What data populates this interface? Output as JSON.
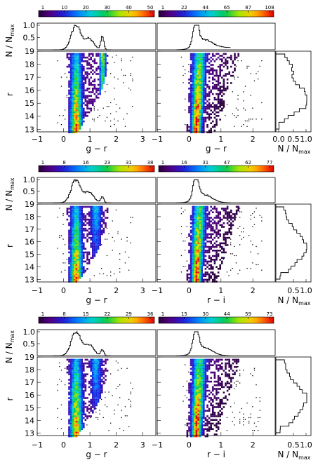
{
  "chart_data": [
    {
      "type": "heatmap",
      "row": 1,
      "colorbars": [
        [
          "1",
          "10",
          "20",
          "30",
          "40",
          "50"
        ],
        [
          "1",
          "22",
          "44",
          "65",
          "87",
          "108"
        ]
      ],
      "panels": [
        {
          "xlabel": "g − r",
          "xticks": [
            "−1",
            "0",
            "1",
            "2",
            "3"
          ],
          "xlim": [
            -1,
            3.5
          ],
          "ylabel": "r",
          "yticks": [
            "13",
            "14",
            "15",
            "16",
            "17",
            "18",
            "19"
          ],
          "ylim": [
            12.8,
            19
          ]
        },
        {
          "xlabel": "g − r",
          "xticks": [
            "−1",
            "0",
            "1",
            "2"
          ],
          "xlim": [
            -1,
            2.7
          ],
          "ylabel": "",
          "yticks": [],
          "ylim": [
            12.8,
            19
          ]
        }
      ],
      "top_histogram": {
        "ylabel": "N / Nmax",
        "yticks": [
          "0.5",
          "1.0"
        ]
      },
      "side_histogram": {
        "xlabel": "N / Nmax",
        "xticks": [
          "0.0",
          "0.5",
          "1.0"
        ]
      }
    },
    {
      "type": "heatmap",
      "row": 2,
      "colorbars": [
        [
          "1",
          "8",
          "16",
          "23",
          "31",
          "38"
        ],
        [
          "1",
          "16",
          "31",
          "47",
          "62",
          "77"
        ]
      ],
      "panels": [
        {
          "xlabel": "g − r",
          "xticks": [
            "−1",
            "0",
            "1",
            "2",
            "3"
          ],
          "xlim": [
            -1,
            3.5
          ],
          "ylabel": "r",
          "yticks": [
            "13",
            "14",
            "15",
            "16",
            "17",
            "18",
            "19"
          ],
          "ylim": [
            12.8,
            19
          ]
        },
        {
          "xlabel": "r − i",
          "xticks": [
            "−1",
            "0",
            "1",
            "2"
          ],
          "xlim": [
            -1,
            2.7
          ],
          "ylabel": "",
          "yticks": [],
          "ylim": [
            12.8,
            19
          ]
        }
      ],
      "top_histogram": {
        "ylabel": "N / Nmax",
        "yticks": [
          "0.5",
          "1.0"
        ]
      },
      "side_histogram": {
        "xlabel": "N / Nmax",
        "xticks": [
          "0.5",
          "1.0"
        ]
      }
    },
    {
      "type": "heatmap",
      "row": 3,
      "colorbars": [
        [
          "1",
          "8",
          "15",
          "22",
          "29",
          "36"
        ],
        [
          "1",
          "15",
          "30",
          "44",
          "59",
          "73"
        ]
      ],
      "panels": [
        {
          "xlabel": "g − r",
          "xticks": [
            "−1",
            "0",
            "1",
            "2",
            "3"
          ],
          "xlim": [
            -1,
            3.5
          ],
          "ylabel": "r",
          "yticks": [
            "13",
            "14",
            "15",
            "16",
            "17",
            "18",
            "19"
          ],
          "ylim": [
            12.8,
            19
          ]
        },
        {
          "xlabel": "r − i",
          "xticks": [
            "−1",
            "0",
            "1",
            "2"
          ],
          "xlim": [
            -1,
            2.7
          ],
          "ylabel": "",
          "yticks": [],
          "ylim": [
            12.8,
            19
          ]
        }
      ],
      "top_histogram": {
        "ylabel": "N / Nmax",
        "yticks": [
          "0.5",
          "1.0"
        ]
      },
      "side_histogram": {
        "xlabel": "N / Nmax",
        "xticks": [
          "0.5",
          "1.0"
        ]
      }
    }
  ]
}
